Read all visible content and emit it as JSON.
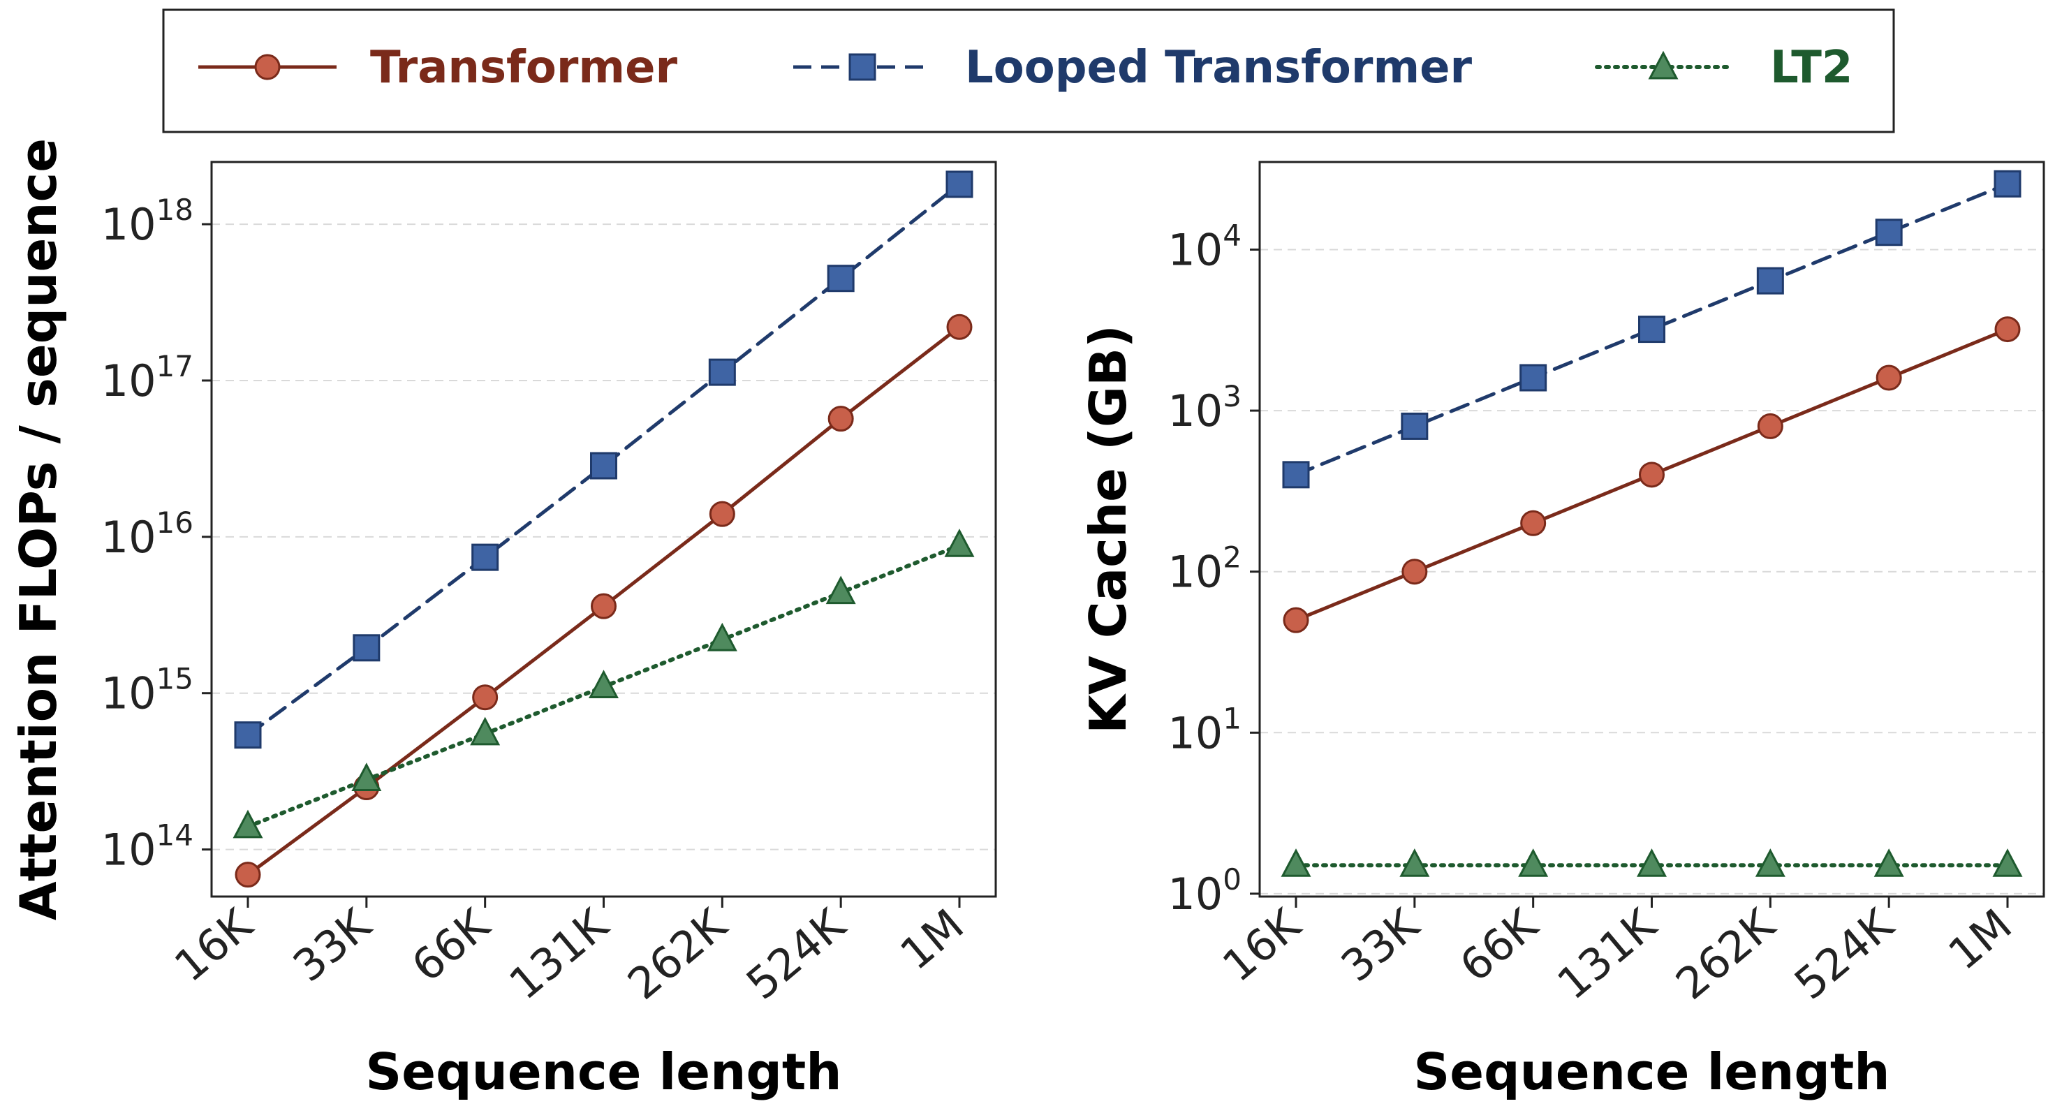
{
  "legend": {
    "items": [
      {
        "label": "Transformer",
        "color": "#7a2a1a",
        "marker": "circle",
        "line": "solid"
      },
      {
        "label": "Looped Transformer",
        "color": "#1f3a6b",
        "marker": "square",
        "line": "dashed"
      },
      {
        "label": "LT2",
        "color": "#1e5a2e",
        "marker": "triangle",
        "line": "dotted"
      }
    ],
    "placement": "top-center"
  },
  "colors": {
    "transformer_line": "#7a2a1a",
    "transformer_marker": "#c8604a",
    "looped_line": "#1f3a6b",
    "looped_marker": "#3f64a4",
    "lt2_line": "#1e5a2e",
    "lt2_marker": "#4f8a5e",
    "grid": "#d9d9d9"
  },
  "chart_data": [
    {
      "type": "line",
      "xlabel": "Sequence length",
      "ylabel": "Attention FLOPs / sequence",
      "categories": [
        "16K",
        "33K",
        "66K",
        "131K",
        "262K",
        "524K",
        "1M"
      ],
      "yscale": "log",
      "ylim": [
        50000000000000.0,
        2.5e+18
      ],
      "yticks": [
        {
          "exp": "14"
        },
        {
          "exp": "15"
        },
        {
          "exp": "16"
        },
        {
          "exp": "17"
        },
        {
          "exp": "18"
        }
      ],
      "grid": "horizontal dashed",
      "series": [
        {
          "name": "Transformer",
          "values": [
            69000000000000.0,
            250000000000000.0,
            940000000000000.0,
            3600000000000000.0,
            1.4e+16,
            5.7e+16,
            2.2e+17
          ]
        },
        {
          "name": "Looped Transformer",
          "values": [
            540000000000000.0,
            1950000000000000.0,
            7400000000000000.0,
            2.85e+16,
            1.13e+17,
            4.5e+17,
            1.8e+18
          ]
        },
        {
          "name": "LT2",
          "values": [
            140000000000000.0,
            280000000000000.0,
            550000000000000.0,
            1100000000000000.0,
            2200000000000000.0,
            4400000000000000.0,
            8800000000000000.0
          ]
        }
      ]
    },
    {
      "type": "line",
      "xlabel": "Sequence length",
      "ylabel": "KV Cache (GB)",
      "categories": [
        "16K",
        "33K",
        "66K",
        "131K",
        "262K",
        "524K",
        "1M"
      ],
      "yscale": "log",
      "ylim": [
        0.96,
        35000
      ],
      "yticks": [
        {
          "exp": "0"
        },
        {
          "exp": "1"
        },
        {
          "exp": "2"
        },
        {
          "exp": "3"
        },
        {
          "exp": "4"
        }
      ],
      "grid": "horizontal dashed",
      "series": [
        {
          "name": "Transformer",
          "values": [
            50,
            100,
            200,
            400,
            800,
            1600,
            3200
          ]
        },
        {
          "name": "Looped Transformer",
          "values": [
            400,
            800,
            1600,
            3200,
            6400,
            12800,
            25600
          ]
        },
        {
          "name": "LT2",
          "values": [
            1.5,
            1.5,
            1.5,
            1.5,
            1.5,
            1.5,
            1.5
          ]
        }
      ]
    }
  ]
}
